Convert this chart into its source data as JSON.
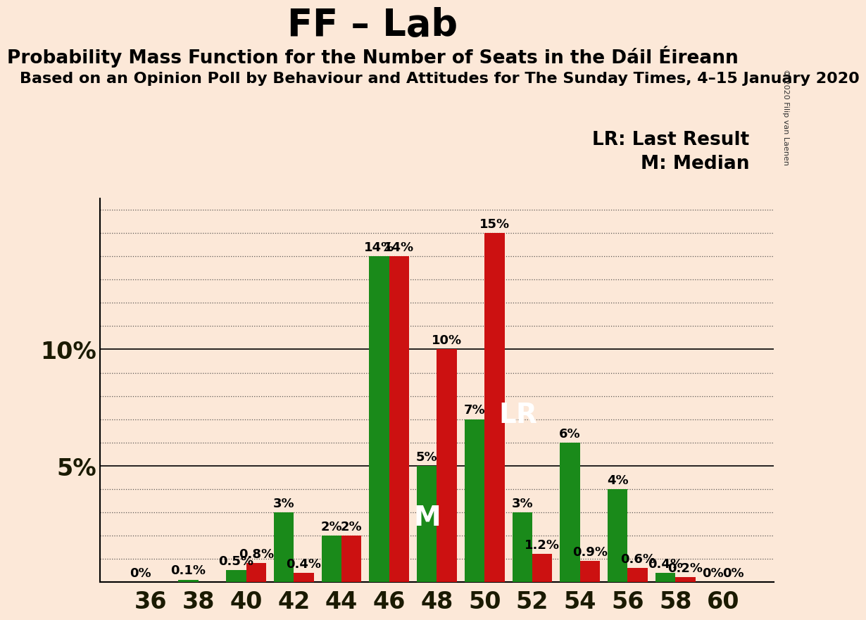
{
  "title": "FF – Lab",
  "subtitle1": "Probability Mass Function for the Number of Seats in the Dáil Éireann",
  "subtitle2": "Based on an Opinion Poll by Behaviour and Attitudes for The Sunday Times, 4–15 January 2020",
  "copyright": "© 2020 Filip van Laenen",
  "seats": [
    36,
    38,
    40,
    42,
    44,
    46,
    48,
    50,
    52,
    54,
    56,
    58,
    60
  ],
  "green_values": [
    0.0,
    0.1,
    0.5,
    3.0,
    2.0,
    14.0,
    5.0,
    7.0,
    3.0,
    6.0,
    4.0,
    0.4,
    0.0
  ],
  "red_values": [
    0.0,
    0.0,
    0.8,
    0.4,
    2.0,
    14.0,
    10.0,
    15.0,
    1.2,
    0.9,
    0.6,
    0.2,
    0.0
  ],
  "green_labels": [
    "0%",
    "0.1%",
    "0.5%",
    "3%",
    "2%",
    "14%",
    "5%",
    "7%",
    "3%",
    "6%",
    "4%",
    "0.4%",
    "0%"
  ],
  "red_labels": [
    "",
    "",
    "0.8%",
    "0.4%",
    "2%",
    "14%",
    "10%",
    "15%",
    "1.2%",
    "0.9%",
    "0.6%",
    "0.2%",
    "0%"
  ],
  "green_color": "#1a8a1a",
  "red_color": "#cc1111",
  "background_color": "#fce8d8",
  "ylim": [
    0,
    16.5
  ],
  "bar_width": 0.42,
  "title_fontsize": 38,
  "subtitle1_fontsize": 19,
  "subtitle2_fontsize": 16,
  "label_fontsize": 13,
  "axis_tick_fontsize": 24,
  "legend_fontsize": 19,
  "lr_text_fontsize": 28,
  "m_text_fontsize": 28
}
